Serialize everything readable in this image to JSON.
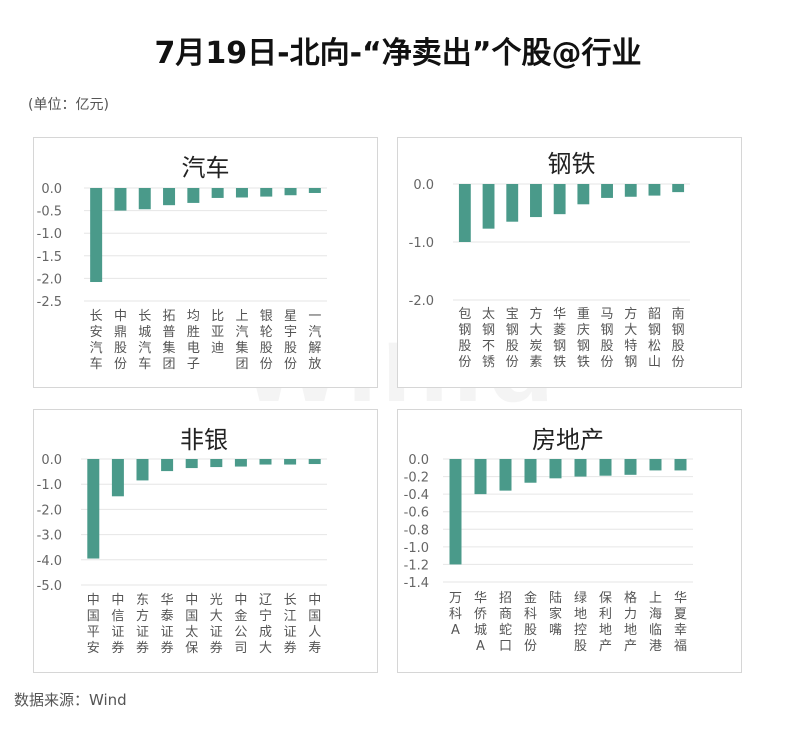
{
  "title": "7月19日-北向-“净卖出”个股@行业",
  "unit": "(单位：亿元)",
  "source": "数据来源：Wind",
  "watermark": "Win.d",
  "colors": {
    "bar": "#4a9a8a",
    "grid": "#e6e6e6",
    "axis_text": "#666666",
    "label_text": "#555555"
  },
  "chart_data": [
    {
      "type": "bar",
      "title": "汽车",
      "categories": [
        "长安汽车",
        "中鼎股份",
        "长城汽车",
        "拓普集团",
        "均胜电子",
        "比亚迪",
        "上汽集团",
        "银轮股份",
        "星宇股份",
        "一汽解放"
      ],
      "values": [
        -2.08,
        -0.5,
        -0.47,
        -0.38,
        -0.33,
        -0.22,
        -0.21,
        -0.19,
        -0.16,
        -0.11
      ],
      "ylim": [
        -2.5,
        0.0
      ],
      "yticks": [
        0.0,
        -0.5,
        -1.0,
        -1.5,
        -2.0,
        -2.5
      ],
      "ytick_labels": [
        "0.0",
        "-0.5",
        "-1.0",
        "-1.5",
        "-2.0",
        "-2.5"
      ],
      "grid": true
    },
    {
      "type": "bar",
      "title": "钢铁",
      "categories": [
        "包钢股份",
        "太钢不锈",
        "宝钢股份",
        "方大炭素",
        "华菱钢铁",
        "重庆钢铁",
        "马钢股份",
        "方大特钢",
        "韶钢松山",
        "南钢股份"
      ],
      "values": [
        -1.0,
        -0.77,
        -0.65,
        -0.57,
        -0.52,
        -0.35,
        -0.24,
        -0.22,
        -0.2,
        -0.14
      ],
      "ylim": [
        -2.0,
        0.0
      ],
      "yticks": [
        0.0,
        -1.0,
        -2.0
      ],
      "ytick_labels": [
        "0.0",
        "-1.0",
        "-2.0"
      ],
      "grid": true
    },
    {
      "type": "bar",
      "title": "非银",
      "categories": [
        "中国平安",
        "中信证券",
        "东方证券",
        "华泰证券",
        "中国太保",
        "光大证券",
        "中金公司",
        "辽宁成大",
        "长江证券",
        "中国人寿"
      ],
      "values": [
        -3.95,
        -1.48,
        -0.85,
        -0.48,
        -0.36,
        -0.32,
        -0.3,
        -0.22,
        -0.22,
        -0.2
      ],
      "ylim": [
        -5.0,
        0.0
      ],
      "yticks": [
        0.0,
        -1.0,
        -2.0,
        -3.0,
        -4.0,
        -5.0
      ],
      "ytick_labels": [
        "0.0",
        "-1.0",
        "-2.0",
        "-3.0",
        "-4.0",
        "-5.0"
      ],
      "grid": true
    },
    {
      "type": "bar",
      "title": "房地产",
      "categories": [
        "万科A",
        "华侨城A",
        "招商蛇口",
        "金科股份",
        "陆家嘴",
        "绿地控股",
        "保利地产",
        "格力地产",
        "上海临港",
        "华夏幸福"
      ],
      "values": [
        -1.2,
        -0.4,
        -0.36,
        -0.27,
        -0.22,
        -0.2,
        -0.19,
        -0.18,
        -0.13,
        -0.13
      ],
      "ylim": [
        -1.4,
        0.0
      ],
      "yticks": [
        0.0,
        -0.2,
        -0.4,
        -0.6,
        -0.8,
        -1.0,
        -1.2,
        -1.4
      ],
      "ytick_labels": [
        "0.0",
        "-0.2",
        "-0.4",
        "-0.6",
        "-0.8",
        "-1.0",
        "-1.2",
        "-1.4"
      ],
      "grid": true
    }
  ]
}
